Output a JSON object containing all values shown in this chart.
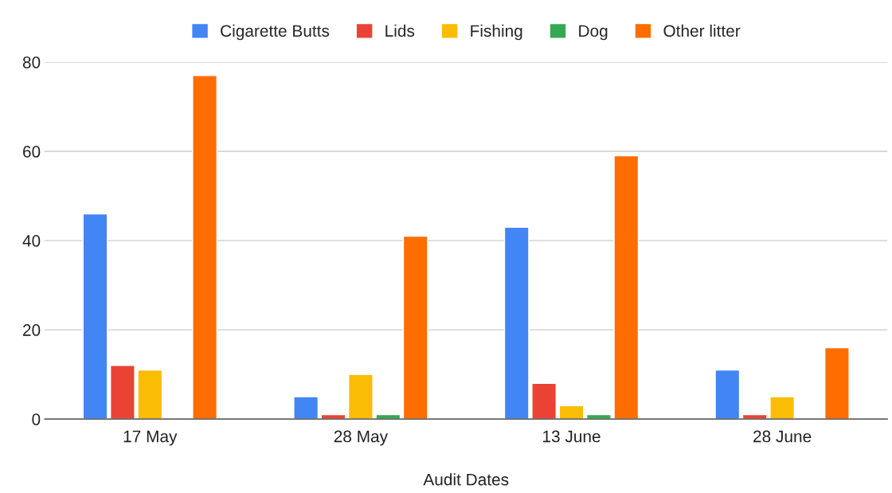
{
  "chart_data": {
    "type": "bar",
    "xlabel": "Audit Dates",
    "categories": [
      "17 May",
      "28 May",
      "13 June",
      "28 June"
    ],
    "series": [
      {
        "name": "Cigarette Butts",
        "color": "#4285f4",
        "values": [
          46,
          5,
          43,
          11
        ]
      },
      {
        "name": "Lids",
        "color": "#ea4335",
        "values": [
          12,
          1,
          8,
          1
        ]
      },
      {
        "name": "Fishing",
        "color": "#fbbc04",
        "values": [
          11,
          10,
          3,
          5
        ]
      },
      {
        "name": "Dog",
        "color": "#34a853",
        "values": [
          null,
          1,
          1,
          null
        ]
      },
      {
        "name": "Other litter",
        "color": "#ff6d01",
        "values": [
          77,
          41,
          59,
          16
        ]
      }
    ],
    "ylim": [
      0,
      80
    ],
    "yticks": [
      0,
      20,
      40,
      60,
      80
    ],
    "grid": "y",
    "legend": "top"
  }
}
